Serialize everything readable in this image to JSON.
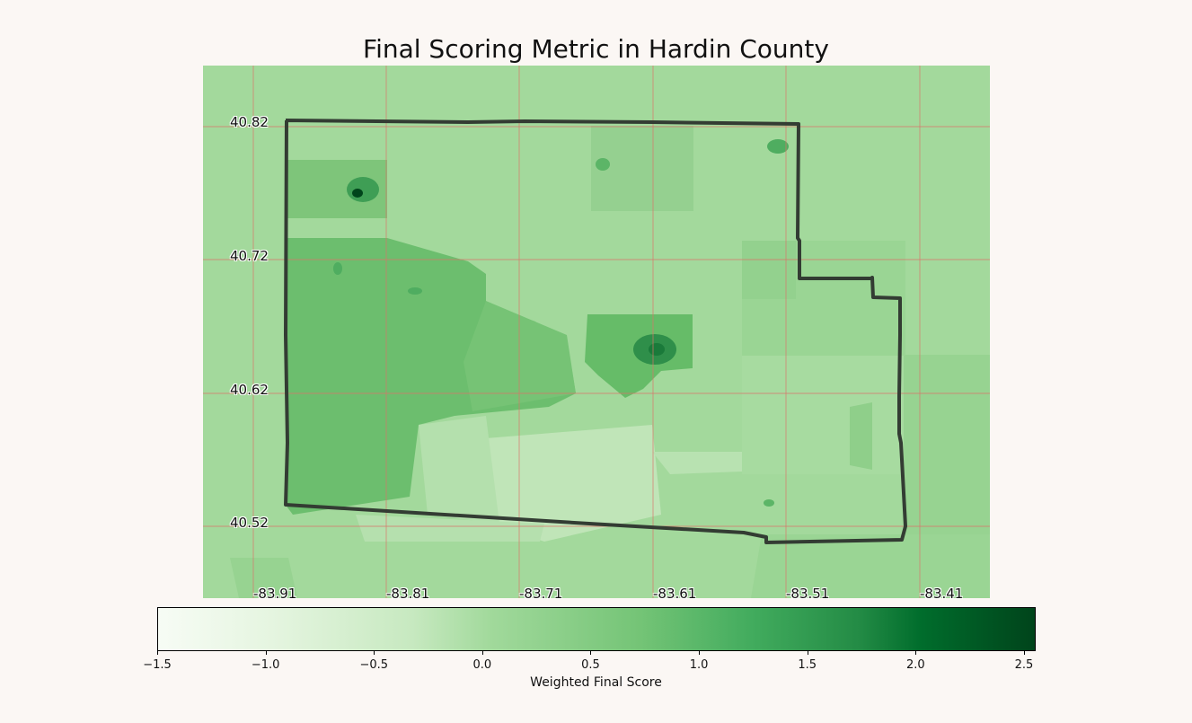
{
  "map": {
    "title": "Final Scoring Metric in Hardin County",
    "latitude_labels": [
      "40.82",
      "40.72",
      "40.62",
      "40.52"
    ],
    "longitude_labels": [
      "-83.91",
      "-83.81",
      "-83.71",
      "-83.61",
      "-83.51",
      "-83.41"
    ],
    "gridline_color": "#d9736a",
    "boundary_color": "#333c33",
    "colormap": "Greens",
    "colorbar": {
      "label": "Weighted Final Score",
      "min": -1.5,
      "max": 2.55,
      "ticks": [
        "−1.5",
        "−1.0",
        "−0.5",
        "0.0",
        "0.5",
        "1.0",
        "1.5",
        "2.0",
        "2.5"
      ]
    }
  }
}
